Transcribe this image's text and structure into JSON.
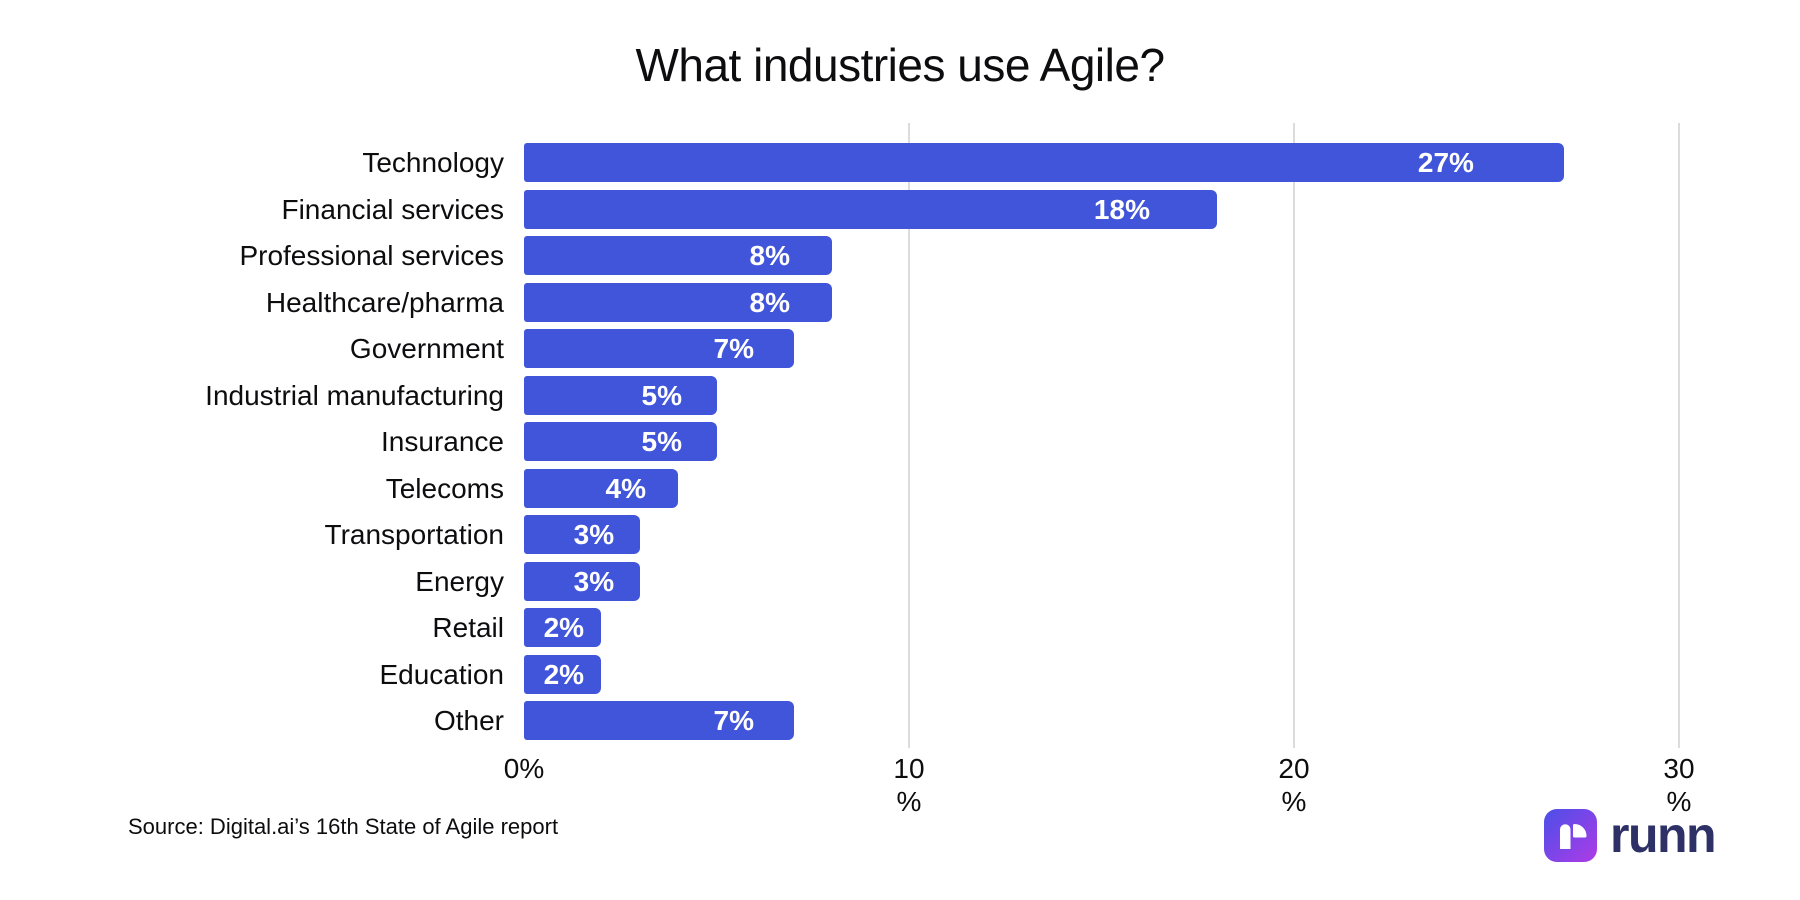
{
  "source_note": "Source: Digital.ai’s 16th State of Agile report",
  "logo": {
    "wordmark": "runn"
  },
  "colors": {
    "bar": "#4155DB",
    "value_label": "#FFFFFF",
    "gridline": "#DCDCDC",
    "text": "#0D0D0F",
    "logo_text": "#2D3166",
    "logo_gradient_start": "#4B4FE9",
    "logo_gradient_end": "#AE3BE6"
  },
  "chart_data": {
    "type": "bar",
    "orientation": "horizontal",
    "title": "What industries use Agile?",
    "categories": [
      "Technology",
      "Financial services",
      "Professional services",
      "Healthcare/pharma",
      "Government",
      "Industrial manufacturing",
      "Insurance",
      "Telecoms",
      "Transportation",
      "Energy",
      "Retail",
      "Education",
      "Other"
    ],
    "values": [
      27,
      18,
      8,
      8,
      7,
      5,
      5,
      4,
      3,
      3,
      2,
      2,
      7
    ],
    "value_labels": [
      "27%",
      "18%",
      "8%",
      "8%",
      "7%",
      "5%",
      "5%",
      "4%",
      "3%",
      "3%",
      "2%",
      "2%",
      "7%"
    ],
    "xlabel": "",
    "ylabel": "",
    "xlim": [
      0,
      30
    ],
    "x_ticks": [
      {
        "value": 0,
        "line1": "0%",
        "line2": ""
      },
      {
        "value": 10,
        "line1": "10",
        "line2": "%"
      },
      {
        "value": 20,
        "line1": "20",
        "line2": "%"
      },
      {
        "value": 30,
        "line1": "30",
        "line2": "%"
      }
    ],
    "gridlines": [
      10,
      20,
      30
    ],
    "grid": "vertical-only",
    "legend": "none",
    "value_label_position": "inside-end"
  }
}
